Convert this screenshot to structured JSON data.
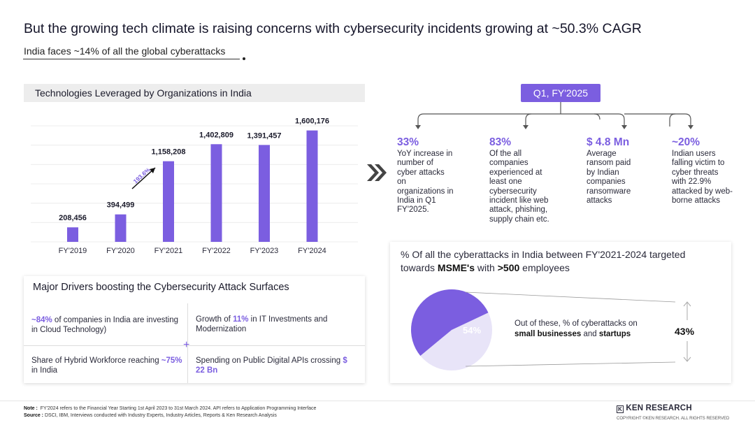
{
  "header": {
    "title": "But the growing tech climate is raising concerns with cybersecurity incidents growing at ~50.3% CAGR",
    "subtitle": "India faces ~14% of all the global cyberattacks"
  },
  "chart_section": {
    "heading": "Technologies Leveraged by Organizations in India"
  },
  "chart_data": {
    "type": "bar",
    "title": "Technologies Leveraged by Organizations in India",
    "categories": [
      "FY'2019",
      "FY'2020",
      "FY'2021",
      "FY'2022",
      "FY'2023",
      "FY'2024"
    ],
    "values": [
      208456,
      394499,
      1158208,
      1402809,
      1391457,
      1600176
    ],
    "value_labels": [
      "208,456",
      "394,499",
      "1,158,208",
      "1,402,809",
      "1,391,457",
      "1,600,176"
    ],
    "ylim": [
      0,
      1800000
    ],
    "annotation": "193.6%",
    "bar_color": "#7b5ee0",
    "grid": true
  },
  "q1": {
    "badge": "Q1, FY'2025",
    "stats": [
      {
        "value": "33%",
        "text": "YoY increase in number of cyber attacks on organizations in India in Q1 FY'2025."
      },
      {
        "value": "83%",
        "text": "Of the all companies experienced at least one cybersecurity incident like web attack, phishing, supply chain etc."
      },
      {
        "value": "$ 4.8 Mn",
        "text": "Average ransom paid by Indian companies ransomware attacks"
      },
      {
        "value": "~20%",
        "text": "Indian users falling victim to cyber threats with 22.9% attacked by web-borne attacks"
      }
    ]
  },
  "drivers": {
    "title": "Major Drivers boosting the Cybersecurity Attack Surfaces",
    "d1": {
      "hl": "~84%",
      "rest": " of companies in India are investing in Cloud Technology)"
    },
    "d2": {
      "pre": "Growth of ",
      "hl": "11%",
      "rest": " in IT Investments and Modernization"
    },
    "d3": {
      "pre": "Share of Hybrid Workforce reaching ",
      "hl": "~75%",
      "rest": " in India"
    },
    "d4": {
      "pre": "Spending on Public Digital APIs crossing ",
      "hl": "$ 22 Bn"
    }
  },
  "msme": {
    "title_pre": "% Of all the cyberattacks in India between FY'2021-2024 targeted towards ",
    "title_b1": "MSME's",
    "title_mid": " with ",
    "title_b2": ">500",
    "title_post": " employees",
    "pie_value": 54,
    "pie_label": "54%",
    "desc_pre": "Out of these, % of cyberattacks on ",
    "desc_b1": "small businesses",
    "desc_mid": " and ",
    "desc_b2": "startups",
    "sub_value": "43%",
    "colors": {
      "main": "#7b5ee0",
      "rest": "#e8e4f8"
    }
  },
  "footer": {
    "note_label": "Note :",
    "note": "FY'2024 refers to the Financial Year Starting 1st April 2023 to 31st March 2024. API refers to Application Programming Interface",
    "source_label": "Source :",
    "source": "DSCI, IBM, Interviews conducted with Industry Experts, Industry Articles, Reports & Ken Research Analysis",
    "logo": "KEN RESEARCH",
    "copyright": "COPYRIGHT ©KEN RESEARCH. ALL RIGHTS RESERVED"
  }
}
